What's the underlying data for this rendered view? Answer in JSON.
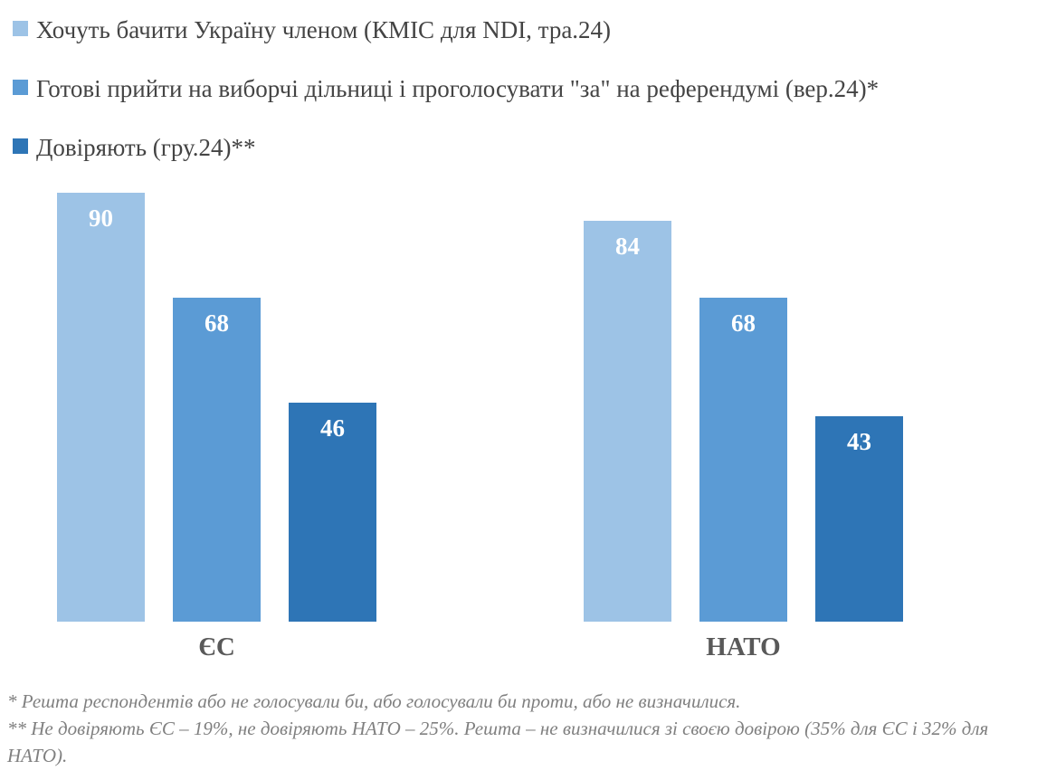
{
  "chart_data": {
    "type": "bar",
    "categories": [
      "ЄС",
      "НАТО"
    ],
    "series": [
      {
        "name": "Хочуть бачити Україну членом (КМІС для NDI, тра.24)",
        "color": "#9DC3E6",
        "values": [
          90,
          84
        ]
      },
      {
        "name": "Готові прийти на виборчі дільниці і проголосувати \"за\" на референдумі (вер.24)*",
        "color": "#5B9BD5",
        "values": [
          68,
          68
        ]
      },
      {
        "name": "Довіряють (гру.24)**",
        "color": "#2E75B6",
        "values": [
          46,
          43
        ]
      }
    ],
    "title": "",
    "xlabel": "",
    "ylabel": "",
    "ylim": [
      0,
      100
    ],
    "grid": false,
    "legend_position": "top-left",
    "data_labels": "inside-end",
    "data_label_color": "#FFFFFF",
    "category_label_color": "#595959"
  },
  "footnotes": [
    "* Решта респондентів або не голосували би, або голосували би проти, або не визначилися.",
    "** Не довіряють ЄС – 19%, не довіряють НАТО – 25%. Решта – не визначилися зі своєю довірою (35% для ЄС і 32% для НАТО)."
  ]
}
